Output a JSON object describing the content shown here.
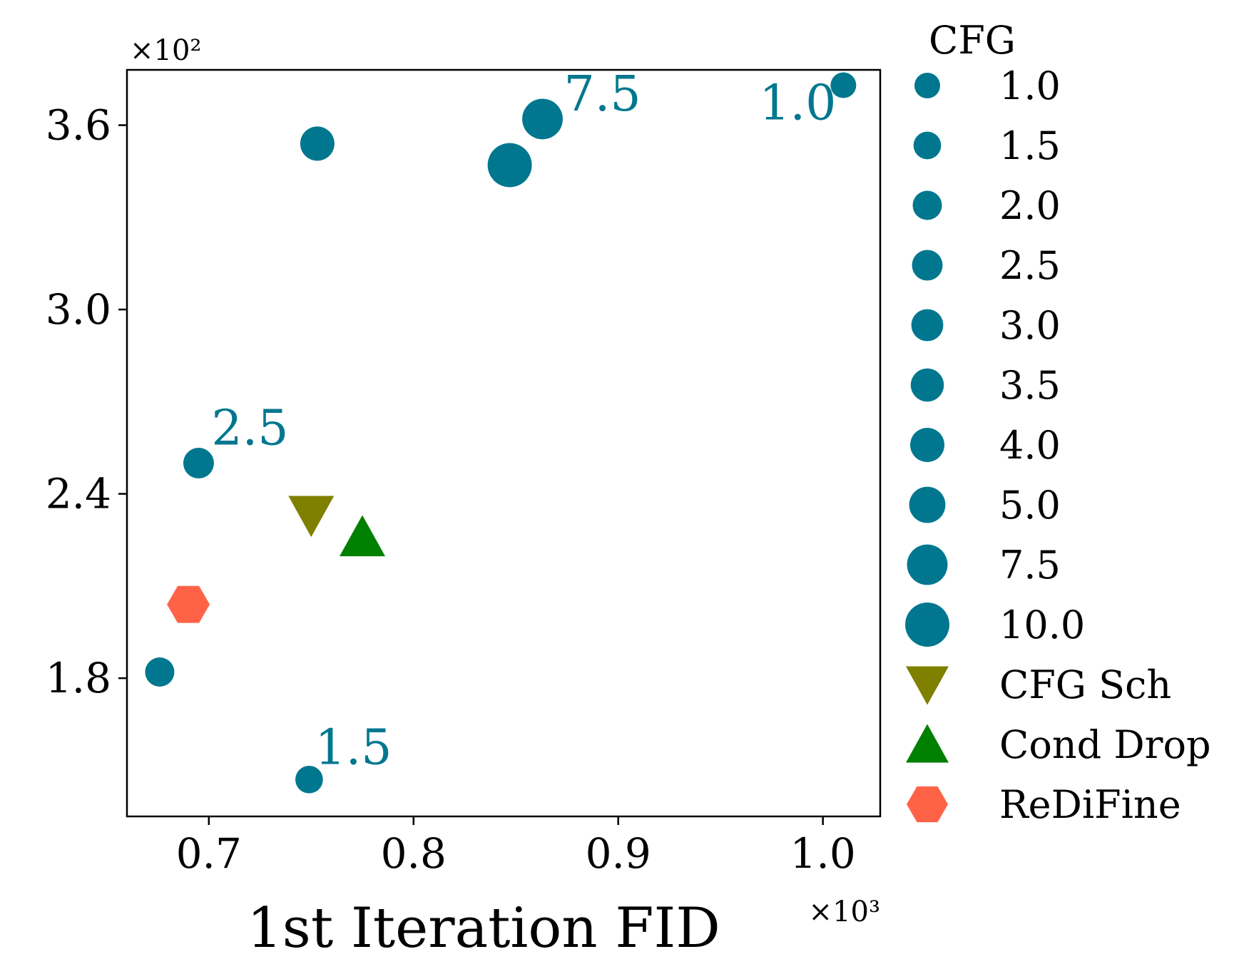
{
  "chart_data": {
    "type": "scatter",
    "title": "",
    "xlabel": "1st Iteration FID",
    "ylabel": "",
    "x_multiplier": "×10³",
    "y_multiplier": "×10²",
    "xlim": [
      0.66,
      1.028
    ],
    "ylim": [
      1.35,
      3.78
    ],
    "xticks": [
      0.7,
      0.8,
      0.9,
      1.0
    ],
    "xtick_labels": [
      "0.7",
      "0.8",
      "0.9",
      "1.0"
    ],
    "yticks": [
      1.8,
      2.4,
      3.0,
      3.6
    ],
    "ytick_labels": [
      "1.8",
      "2.4",
      "3.0",
      "3.6"
    ],
    "grid": false,
    "legend_title": "CFG",
    "legend_position": "outside-right",
    "colors": {
      "cfg": "#00778f",
      "cfg_sch": "#7f7f00",
      "cond_drop": "#008000",
      "redifine": "#ff6347"
    },
    "series": [
      {
        "name": "CFG",
        "marker": "circle",
        "points": [
          {
            "cfg": 1.0,
            "x": 1.01,
            "y": 3.73,
            "label": "1.0"
          },
          {
            "cfg": 1.5,
            "x": 0.749,
            "y": 1.47,
            "label": "1.5"
          },
          {
            "cfg": 2.0,
            "x": 0.676,
            "y": 1.82,
            "label": ""
          },
          {
            "cfg": 2.5,
            "x": 0.695,
            "y": 2.5,
            "label": "2.5"
          },
          {
            "cfg": 4.0,
            "x": 0.753,
            "y": 3.54,
            "label": ""
          },
          {
            "cfg": 7.5,
            "x": 0.863,
            "y": 3.62,
            "label": "7.5"
          },
          {
            "cfg": 10.0,
            "x": 0.847,
            "y": 3.47,
            "label": ""
          }
        ]
      },
      {
        "name": "CFG Sch",
        "marker": "triangle-down",
        "points": [
          {
            "x": 0.75,
            "y": 2.33
          }
        ]
      },
      {
        "name": "Cond Drop",
        "marker": "triangle-up",
        "points": [
          {
            "x": 0.775,
            "y": 2.26
          }
        ]
      },
      {
        "name": "ReDiFine",
        "marker": "hexagon",
        "points": [
          {
            "x": 0.69,
            "y": 2.04
          }
        ]
      }
    ],
    "legend_entries": [
      {
        "label": "1.0",
        "marker": "circle",
        "cfg": 1.0
      },
      {
        "label": "1.5",
        "marker": "circle",
        "cfg": 1.5
      },
      {
        "label": "2.0",
        "marker": "circle",
        "cfg": 2.0
      },
      {
        "label": "2.5",
        "marker": "circle",
        "cfg": 2.5
      },
      {
        "label": "3.0",
        "marker": "circle",
        "cfg": 3.0
      },
      {
        "label": "3.5",
        "marker": "circle",
        "cfg": 3.5
      },
      {
        "label": "4.0",
        "marker": "circle",
        "cfg": 4.0
      },
      {
        "label": "5.0",
        "marker": "circle",
        "cfg": 5.0
      },
      {
        "label": "7.5",
        "marker": "circle",
        "cfg": 7.5
      },
      {
        "label": "10.0",
        "marker": "circle",
        "cfg": 10.0
      },
      {
        "label": "CFG Sch",
        "marker": "triangle-down"
      },
      {
        "label": "Cond Drop",
        "marker": "triangle-up"
      },
      {
        "label": "ReDiFine",
        "marker": "hexagon"
      }
    ]
  }
}
